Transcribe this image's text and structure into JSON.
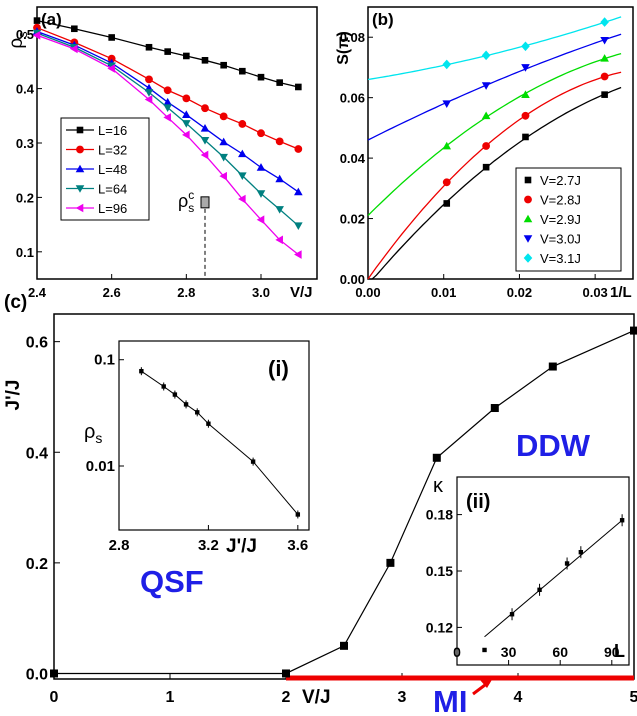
{
  "chart_data": [
    {
      "panel": "(a)",
      "type": "line",
      "xlabel": "V/J",
      "ylabel": "ρs",
      "xlim": [
        2.4,
        3.15
      ],
      "ylim": [
        0.05,
        0.55
      ],
      "xticks": [
        "2.4",
        "2.6",
        "2.8",
        "3.0"
      ],
      "yticks": [
        "0.1",
        "0.2",
        "0.3",
        "0.4",
        "0.5"
      ],
      "legend_position": "center-left",
      "annotation": {
        "text": "ρsc",
        "x": 2.85,
        "y": 0.19
      },
      "x": [
        2.4,
        2.5,
        2.6,
        2.7,
        2.75,
        2.8,
        2.85,
        2.9,
        2.95,
        3.0,
        3.05,
        3.1
      ],
      "series": [
        {
          "name": "L=16",
          "color": "#000000",
          "marker": "square",
          "values": [
            0.525,
            0.51,
            0.494,
            0.476,
            0.468,
            0.46,
            0.452,
            0.443,
            0.432,
            0.421,
            0.411,
            0.403
          ]
        },
        {
          "name": "L=32",
          "color": "#ee0000",
          "marker": "circle",
          "values": [
            0.512,
            0.485,
            0.455,
            0.417,
            0.397,
            0.382,
            0.364,
            0.349,
            0.335,
            0.318,
            0.303,
            0.289
          ]
        },
        {
          "name": "L=48",
          "color": "#0000ee",
          "marker": "triangle-up",
          "values": [
            0.505,
            0.48,
            0.447,
            0.401,
            0.375,
            0.352,
            0.327,
            0.302,
            0.28,
            0.255,
            0.234,
            0.21
          ]
        },
        {
          "name": "L=64",
          "color": "#008080",
          "marker": "triangle-down",
          "values": [
            0.502,
            0.476,
            0.442,
            0.393,
            0.365,
            0.336,
            0.305,
            0.274,
            0.24,
            0.207,
            0.178,
            0.148
          ]
        },
        {
          "name": "L=96",
          "color": "#ee00ee",
          "marker": "triangle-left",
          "values": [
            0.498,
            0.473,
            0.437,
            0.38,
            0.347,
            0.315,
            0.278,
            0.239,
            0.197,
            0.159,
            0.122,
            0.095
          ]
        }
      ]
    },
    {
      "panel": "(b)",
      "type": "scatter",
      "xlabel": "1/L",
      "ylabel": "S(π)",
      "xlim": [
        0,
        0.035
      ],
      "ylim": [
        0,
        0.09
      ],
      "xticks": [
        "0.00",
        "0.01",
        "0.02",
        "0.03"
      ],
      "yticks": [
        "0.00",
        "0.02",
        "0.04",
        "0.06",
        "0.08"
      ],
      "legend_position": "bottom-right",
      "x": [
        0.0104,
        0.0156,
        0.0208,
        0.03125
      ],
      "series": [
        {
          "name": "V=2.7J",
          "color": "#000000",
          "marker": "square",
          "values": [
            0.025,
            0.037,
            0.047,
            0.061
          ],
          "fit_intercept": -0.002
        },
        {
          "name": "V=2.8J",
          "color": "#ee0000",
          "marker": "circle",
          "values": [
            0.032,
            0.044,
            0.054,
            0.067
          ],
          "fit_intercept": 0.0
        },
        {
          "name": "V=2.9J",
          "color": "#00dd00",
          "marker": "triangle-up",
          "values": [
            0.044,
            0.054,
            0.061,
            0.073
          ],
          "fit_intercept": 0.021
        },
        {
          "name": "V=3.0J",
          "color": "#0000ee",
          "marker": "triangle-down",
          "values": [
            0.058,
            0.064,
            0.07,
            0.079
          ],
          "fit_intercept": 0.046
        },
        {
          "name": "V=3.1J",
          "color": "#00e5ee",
          "marker": "diamond",
          "values": [
            0.071,
            0.074,
            0.077,
            0.085
          ],
          "fit_intercept": 0.066
        }
      ]
    },
    {
      "panel": "(c)",
      "type": "line",
      "xlabel": "V/J",
      "ylabel": "J'/J",
      "xlim": [
        0,
        5
      ],
      "ylim": [
        -0.01,
        0.65
      ],
      "xticks": [
        "0",
        "1",
        "2",
        "3",
        "4",
        "5"
      ],
      "yticks": [
        "0.0",
        "0.2",
        "0.4",
        "0.6"
      ],
      "x": [
        0,
        2.0,
        2.5,
        2.9,
        3.3,
        3.8,
        4.3,
        5.0
      ],
      "values": [
        0.0,
        0.0,
        0.05,
        0.2,
        0.39,
        0.48,
        0.555,
        0.62
      ],
      "region_labels": [
        "QSF",
        "DDW",
        "MI"
      ],
      "region_color": "#1f1fe6",
      "mi_line": {
        "from": 2.0,
        "to": 5.0,
        "color": "#ee0000"
      }
    },
    {
      "panel": "(i)",
      "type": "line",
      "xlabel": "J'/J",
      "ylabel": "ρs",
      "yscale": "log",
      "xlim": [
        2.8,
        3.65
      ],
      "ylim": [
        0.0025,
        0.15
      ],
      "xticks": [
        "2.8",
        "3.2",
        "3.6"
      ],
      "yticks": [
        "0.1",
        "0.01"
      ],
      "x": [
        2.9,
        3.0,
        3.05,
        3.1,
        3.15,
        3.2,
        3.4,
        3.6
      ],
      "values": [
        0.078,
        0.056,
        0.047,
        0.038,
        0.032,
        0.025,
        0.011,
        0.0035
      ]
    },
    {
      "panel": "(ii)",
      "type": "scatter",
      "xlabel": "L",
      "ylabel": "κ",
      "xlim": [
        0,
        100
      ],
      "ylim": [
        0.1,
        0.2
      ],
      "xticks": [
        "0",
        "30",
        "60",
        "90"
      ],
      "yticks": [
        "0.12",
        "0.15",
        "0.18"
      ],
      "x": [
        16,
        32,
        48,
        64,
        72,
        96
      ],
      "values": [
        0.108,
        0.127,
        0.14,
        0.154,
        0.16,
        0.177
      ],
      "fit": {
        "x": [
          16,
          96
        ],
        "y": [
          0.115,
          0.177
        ]
      }
    }
  ]
}
